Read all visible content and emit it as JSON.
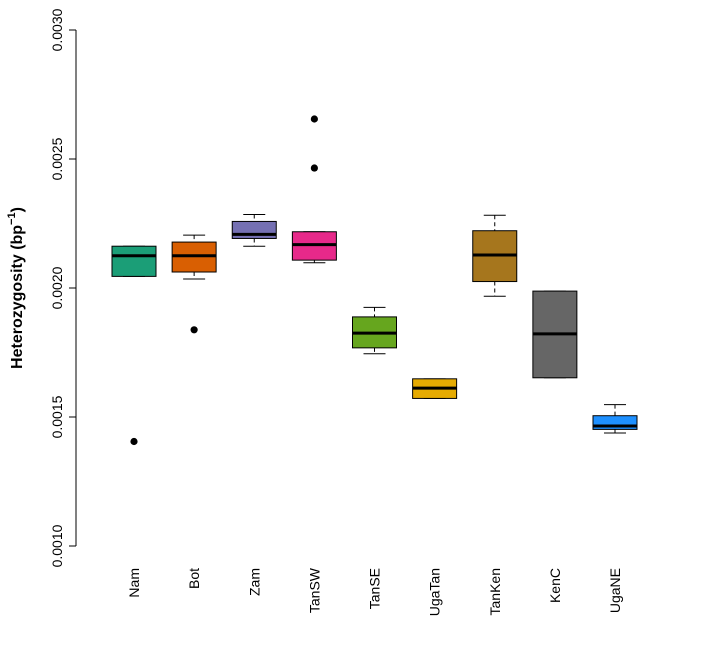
{
  "chart_data": {
    "type": "boxplot",
    "title": "",
    "xlabel": "",
    "ylabel": "Heterozygosity (bp",
    "ylabel_superscript": "−1",
    "ylabel_close": ")",
    "ylim": [
      0.001,
      0.003
    ],
    "yticks": [
      {
        "value": 0.001,
        "label": "0.0010"
      },
      {
        "value": 0.0015,
        "label": "0.0015"
      },
      {
        "value": 0.002,
        "label": "0.0020"
      },
      {
        "value": 0.0025,
        "label": "0.0025"
      },
      {
        "value": 0.003,
        "label": "0.0030"
      }
    ],
    "categories": [
      "Nam",
      "Bot",
      "Zam",
      "TanSW",
      "TanSE",
      "UgaTan",
      "TanKen",
      "KenC",
      "UgaNE"
    ],
    "boxes": [
      {
        "name": "Nam",
        "color": "#1b9e77",
        "whisker_low": 0.002045,
        "q1": 0.002045,
        "median": 0.002125,
        "q3": 0.002162,
        "whisker_high": 0.002162,
        "outliers": [
          0.001405
        ]
      },
      {
        "name": "Bot",
        "color": "#d95f02",
        "whisker_low": 0.002035,
        "q1": 0.002062,
        "median": 0.002125,
        "q3": 0.002178,
        "whisker_high": 0.002205,
        "outliers": [
          0.001838
        ]
      },
      {
        "name": "Zam",
        "color": "#7570b3",
        "whisker_low": 0.002162,
        "q1": 0.002192,
        "median": 0.002208,
        "q3": 0.002258,
        "whisker_high": 0.002285,
        "outliers": []
      },
      {
        "name": "TanSW",
        "color": "#e7298a",
        "whisker_low": 0.002098,
        "q1": 0.002108,
        "median": 0.002168,
        "q3": 0.002218,
        "whisker_high": 0.002218,
        "outliers": [
          0.002465,
          0.002655
        ]
      },
      {
        "name": "TanSE",
        "color": "#66a61e",
        "whisker_low": 0.001745,
        "q1": 0.001768,
        "median": 0.001825,
        "q3": 0.001888,
        "whisker_high": 0.001925,
        "outliers": []
      },
      {
        "name": "UgaTan",
        "color": "#e6ab02",
        "whisker_low": 0.001572,
        "q1": 0.001572,
        "median": 0.001612,
        "q3": 0.001648,
        "whisker_high": 0.001648,
        "outliers": []
      },
      {
        "name": "TanKen",
        "color": "#a6761d",
        "whisker_low": 0.001968,
        "q1": 0.002025,
        "median": 0.002128,
        "q3": 0.002222,
        "whisker_high": 0.002282,
        "outliers": []
      },
      {
        "name": "KenC",
        "color": "#666666",
        "whisker_low": 0.001652,
        "q1": 0.001652,
        "median": 0.001822,
        "q3": 0.001988,
        "whisker_high": 0.001988,
        "outliers": []
      },
      {
        "name": "UgaNE",
        "color": "#1e90ff",
        "whisker_low": 0.001438,
        "q1": 0.001452,
        "median": 0.001465,
        "q3": 0.001505,
        "whisker_high": 0.001548,
        "outliers": []
      }
    ],
    "grid": false,
    "legend": "none"
  }
}
